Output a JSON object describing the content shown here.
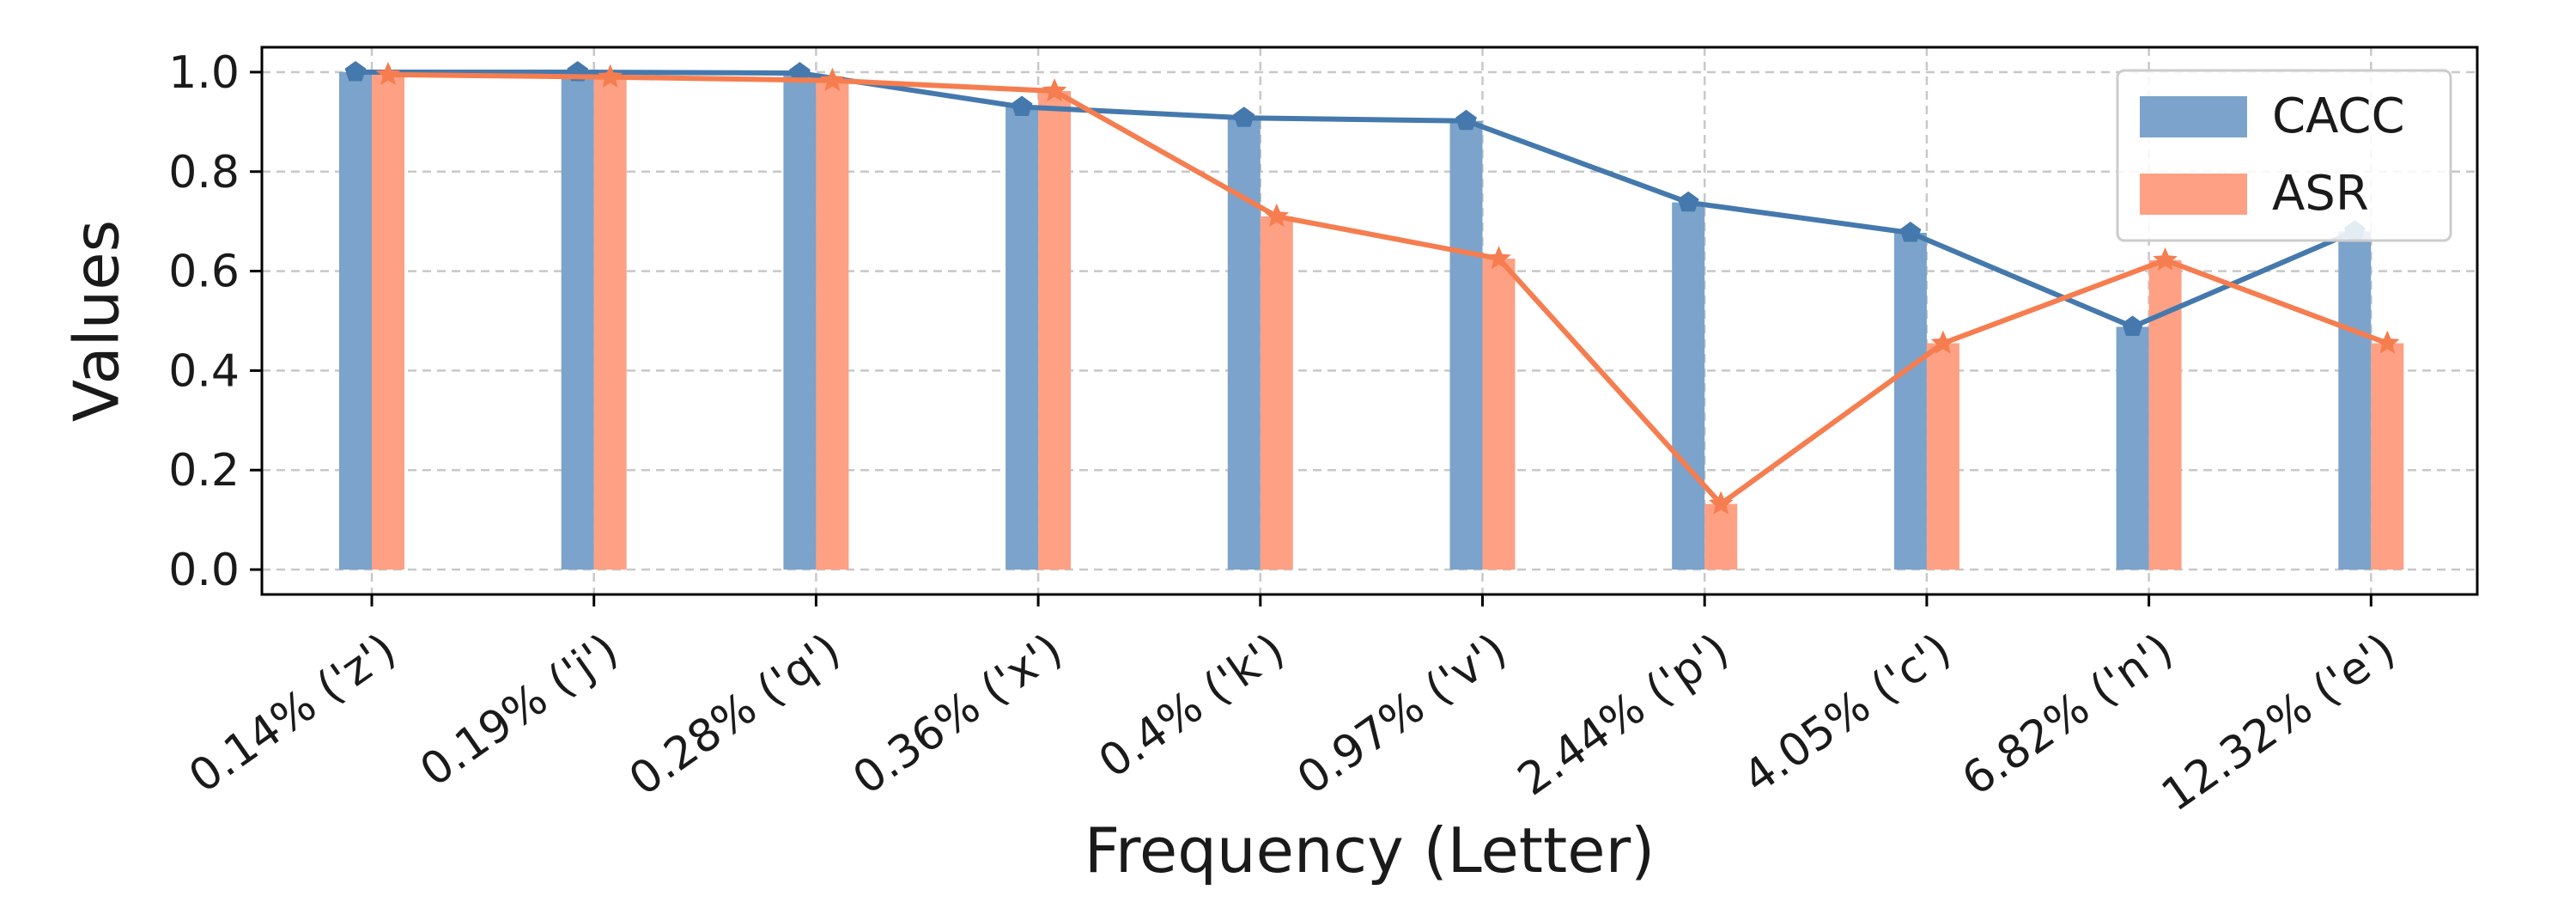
{
  "chart_data": {
    "type": "bar",
    "categories": [
      "0.14% ('z')",
      "0.19% ('j')",
      "0.28% ('q')",
      "0.36% ('x')",
      "0.4% ('k')",
      "0.97% ('v')",
      "2.44% ('p')",
      "4.05% ('c')",
      "6.82% ('n')",
      "12.32% ('e')"
    ],
    "series": [
      {
        "name": "CACC",
        "values": [
          1.0,
          1.0,
          0.998,
          0.93,
          0.908,
          0.902,
          0.738,
          0.677,
          0.488,
          0.68
        ]
      },
      {
        "name": "ASR",
        "values": [
          0.995,
          0.99,
          0.983,
          0.962,
          0.71,
          0.625,
          0.132,
          0.455,
          0.622,
          0.455
        ]
      }
    ],
    "overlay_lines": true,
    "title": "",
    "xlabel": "Frequency (Letter)",
    "ylabel": "Values",
    "ylim": [
      -0.05,
      1.05
    ],
    "yticks": [
      0.0,
      0.2,
      0.4,
      0.6,
      0.8,
      1.0
    ],
    "ytick_labels": [
      "0.0",
      "0.2",
      "0.4",
      "0.6",
      "0.8",
      "1.0"
    ],
    "grid": true,
    "legend": "top-right",
    "colors": {
      "CACC_bar": "#7ba3cb",
      "CACC_line": "#4579ad",
      "ASR_bar": "#fea083",
      "ASR_line": "#f57d4f",
      "grid": "#c8c8c8",
      "axis": "#000000"
    },
    "markers": {
      "CACC": "pentagon",
      "ASR": "star"
    }
  }
}
